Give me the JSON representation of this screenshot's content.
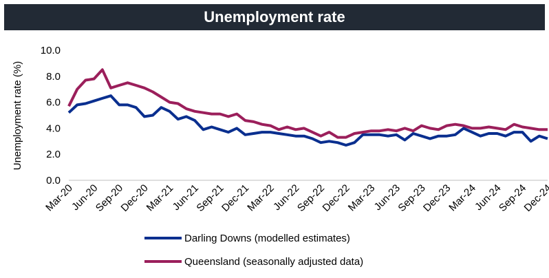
{
  "colors": {
    "darling_downs": "#0a2f8f",
    "queensland": "#9b1f5b",
    "title_bg": "#222a35"
  },
  "chart_data": {
    "type": "line",
    "title": "Unemployment rate",
    "ylabel": "Unemployment rate (%)",
    "xlabel": "",
    "ylim": [
      0,
      10
    ],
    "yticks": [
      "0.0",
      "2.0",
      "4.0",
      "6.0",
      "8.0",
      "10.0"
    ],
    "ytick_values": [
      0,
      2,
      4,
      6,
      8,
      10
    ],
    "x_tick_labels": [
      "Mar-20",
      "Jun-20",
      "Sep-20",
      "Dec-20",
      "Mar-21",
      "Jun-21",
      "Sep-21",
      "Dec-21",
      "Mar-22",
      "Jun-22",
      "Sep-22",
      "Dec-22",
      "Mar-23",
      "Jun-23",
      "Sep-23",
      "Dec-23",
      "Mar-24",
      "Jun-24",
      "Sep-24",
      "Dec-24"
    ],
    "grid": false,
    "legend": "bottom",
    "x": [
      "Mar-20",
      "Apr-20",
      "May-20",
      "Jun-20",
      "Jul-20",
      "Aug-20",
      "Sep-20",
      "Oct-20",
      "Nov-20",
      "Dec-20",
      "Jan-21",
      "Feb-21",
      "Mar-21",
      "Apr-21",
      "May-21",
      "Jun-21",
      "Jul-21",
      "Aug-21",
      "Sep-21",
      "Oct-21",
      "Nov-21",
      "Dec-21",
      "Jan-22",
      "Feb-22",
      "Mar-22",
      "Apr-22",
      "May-22",
      "Jun-22",
      "Jul-22",
      "Aug-22",
      "Sep-22",
      "Oct-22",
      "Nov-22",
      "Dec-22",
      "Jan-23",
      "Feb-23",
      "Mar-23",
      "Apr-23",
      "May-23",
      "Jun-23",
      "Jul-23",
      "Aug-23",
      "Sep-23",
      "Oct-23",
      "Nov-23",
      "Dec-23",
      "Jan-24",
      "Feb-24",
      "Mar-24",
      "Apr-24",
      "May-24",
      "Jun-24",
      "Jul-24",
      "Aug-24",
      "Sep-24",
      "Oct-24",
      "Nov-24",
      "Dec-24"
    ],
    "series": [
      {
        "name": "Darling Downs (modelled estimates)",
        "color": "#0a2f8f",
        "values": [
          5.2,
          5.8,
          5.9,
          6.1,
          6.3,
          6.5,
          5.8,
          5.8,
          5.6,
          4.9,
          5.0,
          5.6,
          5.3,
          4.7,
          4.9,
          4.6,
          3.9,
          4.1,
          3.9,
          3.7,
          4.0,
          3.5,
          3.6,
          3.7,
          3.7,
          3.6,
          3.5,
          3.4,
          3.4,
          3.2,
          2.9,
          3.0,
          2.9,
          2.7,
          2.9,
          3.5,
          3.5,
          3.5,
          3.4,
          3.5,
          3.1,
          3.6,
          3.4,
          3.2,
          3.4,
          3.4,
          3.5,
          4.0,
          3.7,
          3.4,
          3.6,
          3.6,
          3.4,
          3.7,
          3.7,
          3.0,
          3.4,
          3.2
        ]
      },
      {
        "name": "Queensland (seasonally adjusted data)",
        "color": "#9b1f5b",
        "values": [
          5.7,
          7.0,
          7.7,
          7.8,
          8.5,
          7.1,
          7.3,
          7.5,
          7.3,
          7.1,
          6.8,
          6.4,
          6.0,
          5.9,
          5.5,
          5.3,
          5.2,
          5.1,
          5.1,
          4.9,
          5.1,
          4.6,
          4.5,
          4.3,
          4.2,
          3.9,
          4.1,
          3.9,
          4.0,
          3.7,
          3.4,
          3.7,
          3.3,
          3.3,
          3.6,
          3.7,
          3.8,
          3.8,
          3.9,
          3.8,
          4.0,
          3.8,
          4.2,
          4.0,
          3.9,
          4.2,
          4.3,
          4.2,
          4.0,
          4.0,
          4.1,
          4.0,
          3.9,
          4.3,
          4.1,
          4.0,
          3.9,
          3.9
        ]
      }
    ]
  }
}
